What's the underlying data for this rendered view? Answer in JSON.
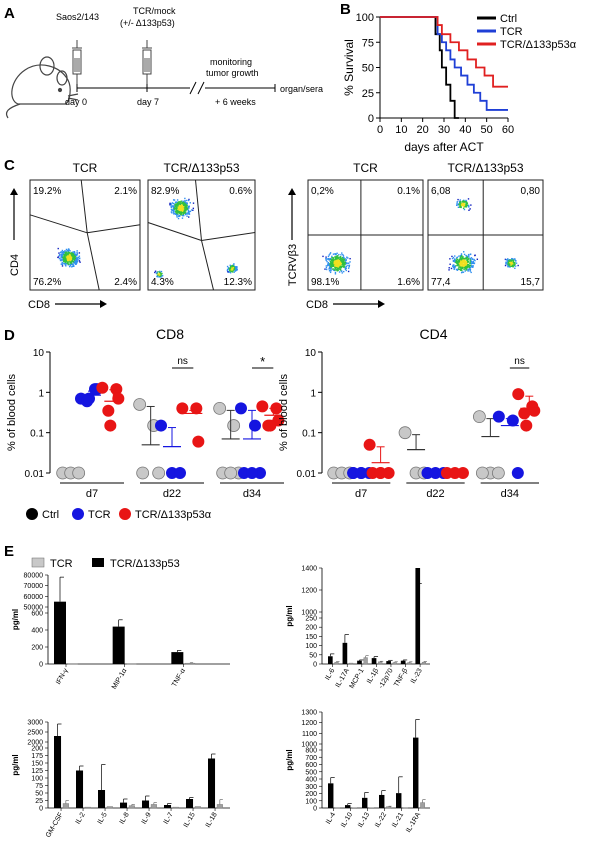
{
  "panels": {
    "A": "A",
    "B": "B",
    "C": "C",
    "D": "D",
    "E": "E"
  },
  "panel_a": {
    "cell_label": "Saos2/143",
    "tcr_label_1": "TCR/mock",
    "tcr_label_2": "(+/- Δ133p53)",
    "day0": "day 0",
    "day7": "day 7",
    "monitor_1": "monitoring",
    "monitor_2": "tumor growth",
    "weeks": "+ 6 weeks",
    "organ": "organ/sera"
  },
  "chart_data": [
    {
      "id": "survival",
      "type": "line",
      "xlabel": "days after ACT",
      "ylabel": "% Survival",
      "xlim": [
        0,
        60
      ],
      "ylim": [
        0,
        100
      ],
      "xticks": [
        0,
        10,
        20,
        30,
        40,
        50,
        60
      ],
      "yticks": [
        0,
        25,
        50,
        75,
        100
      ],
      "legend_position": "top-right",
      "series": [
        {
          "name": "Ctrl",
          "color": "#000000",
          "x": [
            0,
            25,
            26,
            28,
            29,
            31,
            33,
            35,
            37
          ],
          "y": [
            100,
            100,
            83,
            67,
            50,
            33,
            17,
            0,
            0
          ]
        },
        {
          "name": "TCR",
          "color": "#1f3fd6",
          "x": [
            0,
            25,
            27,
            29,
            31,
            33,
            35,
            38,
            41,
            44,
            47,
            50,
            60
          ],
          "y": [
            100,
            100,
            83,
            75,
            67,
            58,
            50,
            42,
            33,
            25,
            17,
            8,
            8
          ]
        },
        {
          "name": "TCR/Δ133p53α",
          "color": "#e02020",
          "x": [
            0,
            25,
            27,
            29,
            33,
            37,
            41,
            45,
            49,
            53,
            60
          ],
          "y": [
            100,
            100,
            92,
            83,
            75,
            67,
            58,
            50,
            42,
            31,
            31
          ]
        }
      ]
    },
    {
      "id": "flow",
      "type": "scatter",
      "plots": [
        {
          "title": "TCR",
          "xlabel": "CD8",
          "ylabel": "CD4",
          "q": [
            "19.2%",
            "2.1%",
            "76.2%",
            "2.4%"
          ]
        },
        {
          "title": "TCR/Δ133p53",
          "xlabel": "",
          "ylabel": "",
          "q": [
            "82.9%",
            "0.6%",
            "4.3%",
            "12.3%"
          ]
        },
        {
          "title": "TCR",
          "xlabel": "CD8",
          "ylabel": "TCRVβ3",
          "q": [
            "0,2%",
            "0.1%",
            "98.1%",
            "1.6%"
          ]
        },
        {
          "title": "TCR/Δ133p53",
          "xlabel": "",
          "ylabel": "",
          "q": [
            "6,08",
            "0,80",
            "77,4",
            "15,7"
          ]
        }
      ]
    },
    {
      "id": "cd8",
      "type": "scatter",
      "title": "CD8",
      "ylabel": "% of blood cells",
      "yscale": "log",
      "yticks": [
        "0.01",
        "0.1",
        "1",
        "10"
      ],
      "categories": [
        "d7",
        "d22",
        "d34"
      ],
      "significance": [
        "ns",
        "*"
      ],
      "groups": [
        {
          "cat": "d7",
          "ctrl": [
            0.01,
            0.01,
            0.01
          ],
          "tcr": [
            0.7,
            1.2,
            1.2,
            0.6,
            0.7
          ],
          "d133": [
            1.3,
            1.2,
            0.7,
            0.35,
            0.15
          ],
          "mean": {
            "tcr": 0.85,
            "d133": 0.6
          }
        },
        {
          "cat": "d22",
          "ctrl": [
            0.5,
            0.15,
            0.01,
            0.01
          ],
          "tcr": [
            0.15,
            0.01,
            0.01
          ],
          "d133": [
            0.4,
            0.4,
            0.06
          ],
          "mean": {
            "ctrl": 0.05,
            "tcr": 0.045,
            "d133": 0.3
          }
        },
        {
          "cat": "d34",
          "ctrl": [
            0.4,
            0.15,
            0.01,
            0.01,
            0.01
          ],
          "tcr": [
            0.4,
            0.15,
            0.01,
            0.01,
            0.01
          ],
          "d133": [
            0.45,
            0.4,
            0.2,
            0.15,
            0.15
          ],
          "mean": {
            "ctrl": 0.07,
            "tcr": 0.07,
            "d133": 0.27
          }
        }
      ]
    },
    {
      "id": "cd4",
      "type": "scatter",
      "title": "CD4",
      "ylabel": "% of blood cells",
      "yscale": "log",
      "yticks": [
        "0.01",
        "0.1",
        "1",
        "10"
      ],
      "categories": [
        "d7",
        "d22",
        "d34"
      ],
      "significance": [
        "ns"
      ],
      "groups": [
        {
          "cat": "d7",
          "ctrl": [
            0.01,
            0.01,
            0.01
          ],
          "tcr": [
            0.01,
            0.01,
            0.01,
            0.01,
            0.01
          ],
          "d133": [
            0.05,
            0.01,
            0.01,
            0.01,
            0.01
          ],
          "mean": {
            "d133": 0.018
          }
        },
        {
          "cat": "d22",
          "ctrl": [
            0.1,
            0.01,
            0.01
          ],
          "tcr": [
            0.01,
            0.01,
            0.01
          ],
          "d133": [
            0.01,
            0.01,
            0.01
          ],
          "mean": {
            "ctrl": 0.038
          }
        },
        {
          "cat": "d34",
          "ctrl": [
            0.25,
            0.01,
            0.01,
            0.01
          ],
          "tcr": [
            0.25,
            0.2,
            0.01
          ],
          "d133": [
            0.9,
            0.45,
            0.35,
            0.3,
            0.15
          ],
          "mean": {
            "ctrl": 0.08,
            "tcr": 0.15,
            "d133": 0.4
          }
        }
      ]
    },
    {
      "id": "cyto1",
      "type": "bar",
      "ylabel": "pg/ml",
      "ytick_labels": [
        "0",
        "200",
        "400",
        "600",
        "50000",
        "60000",
        "70000",
        "80000"
      ],
      "categories": [
        "IFN-γ",
        "MIP-1α",
        "TNF-α"
      ],
      "series": [
        {
          "name": "TCR/Δ133p53",
          "values": [
            55000,
            440,
            140
          ],
          "err": [
            78000,
            520,
            160
          ]
        },
        {
          "name": "TCR",
          "values": [
            5,
            5,
            10
          ],
          "err": [
            null,
            null,
            15
          ]
        }
      ]
    },
    {
      "id": "cyto2",
      "type": "bar",
      "ylabel": "pg/ml",
      "ytick_labels": [
        "0",
        "50",
        "100",
        "150",
        "200",
        "250",
        "1000",
        "1200",
        "1400"
      ],
      "categories": [
        "IL-6",
        "IL-17A",
        "MCP-1",
        "IL-1β",
        "-12p70",
        "TNF-β",
        "IL-23"
      ],
      "series": [
        {
          "name": "TCR/Δ133p53",
          "values": [
            42,
            115,
            18,
            32,
            16,
            18,
            850
          ],
          "err": [
            55,
            160,
            22,
            40,
            20,
            22,
            1260
          ]
        },
        {
          "name": "TCR",
          "values": [
            10,
            5,
            35,
            12,
            8,
            8,
            10
          ],
          "err": [
            14,
            null,
            45,
            15,
            12,
            12,
            14
          ]
        }
      ]
    },
    {
      "id": "cyto3",
      "type": "bar",
      "ylabel": "pg/ml",
      "ytick_labels": [
        "0",
        "25",
        "50",
        "75",
        "100",
        "125",
        "150",
        "175",
        "200",
        "2000",
        "2500",
        "3000"
      ],
      "categories": [
        "GM-CSF",
        "IL-2",
        "IL-5",
        "IL-8",
        "IL-9",
        "IL-7",
        "IL-15",
        "IL-18"
      ],
      "series": [
        {
          "name": "TCR/Δ133p53",
          "values": [
            2300,
            125,
            60,
            18,
            25,
            10,
            30,
            165
          ],
          "err": [
            2900,
            140,
            145,
            30,
            40,
            15,
            35,
            180
          ]
        },
        {
          "name": "TCR",
          "values": [
            15,
            3,
            5,
            8,
            12,
            3,
            5,
            12
          ],
          "err": [
            25,
            null,
            null,
            12,
            18,
            null,
            null,
            28
          ]
        }
      ]
    },
    {
      "id": "cyto4",
      "type": "bar",
      "ylabel": "pg/ml",
      "ytick_labels": [
        "0",
        "100",
        "200",
        "300",
        "400",
        "500",
        "600",
        "700",
        "800",
        "1000",
        "1100",
        "1200",
        "1300"
      ],
      "categories": [
        "IL-4",
        "IL-10",
        "IL-13",
        "IL-22",
        "IL-21",
        "IL-1RA"
      ],
      "series": [
        {
          "name": "TCR/Δ133p53",
          "values": [
            340,
            40,
            140,
            180,
            205,
            1060
          ],
          "err": [
            420,
            60,
            215,
            240,
            430,
            1230
          ]
        },
        {
          "name": "TCR",
          "values": [
            5,
            3,
            3,
            20,
            5,
            75
          ],
          "err": [
            null,
            null,
            null,
            25,
            null,
            115
          ]
        }
      ]
    }
  ],
  "legend_d": {
    "ctrl": "Ctrl",
    "tcr": "TCR",
    "d133": "TCR/Δ133p53α"
  },
  "legend_e": {
    "tcr": "TCR",
    "d133": "TCR/Δ133p53"
  },
  "colors": {
    "ctrl": "#c8c8c8",
    "tcr": "#1515e0",
    "d133": "#e81515",
    "bar_black": "#000000",
    "bar_gray": "#a0a0a0"
  }
}
